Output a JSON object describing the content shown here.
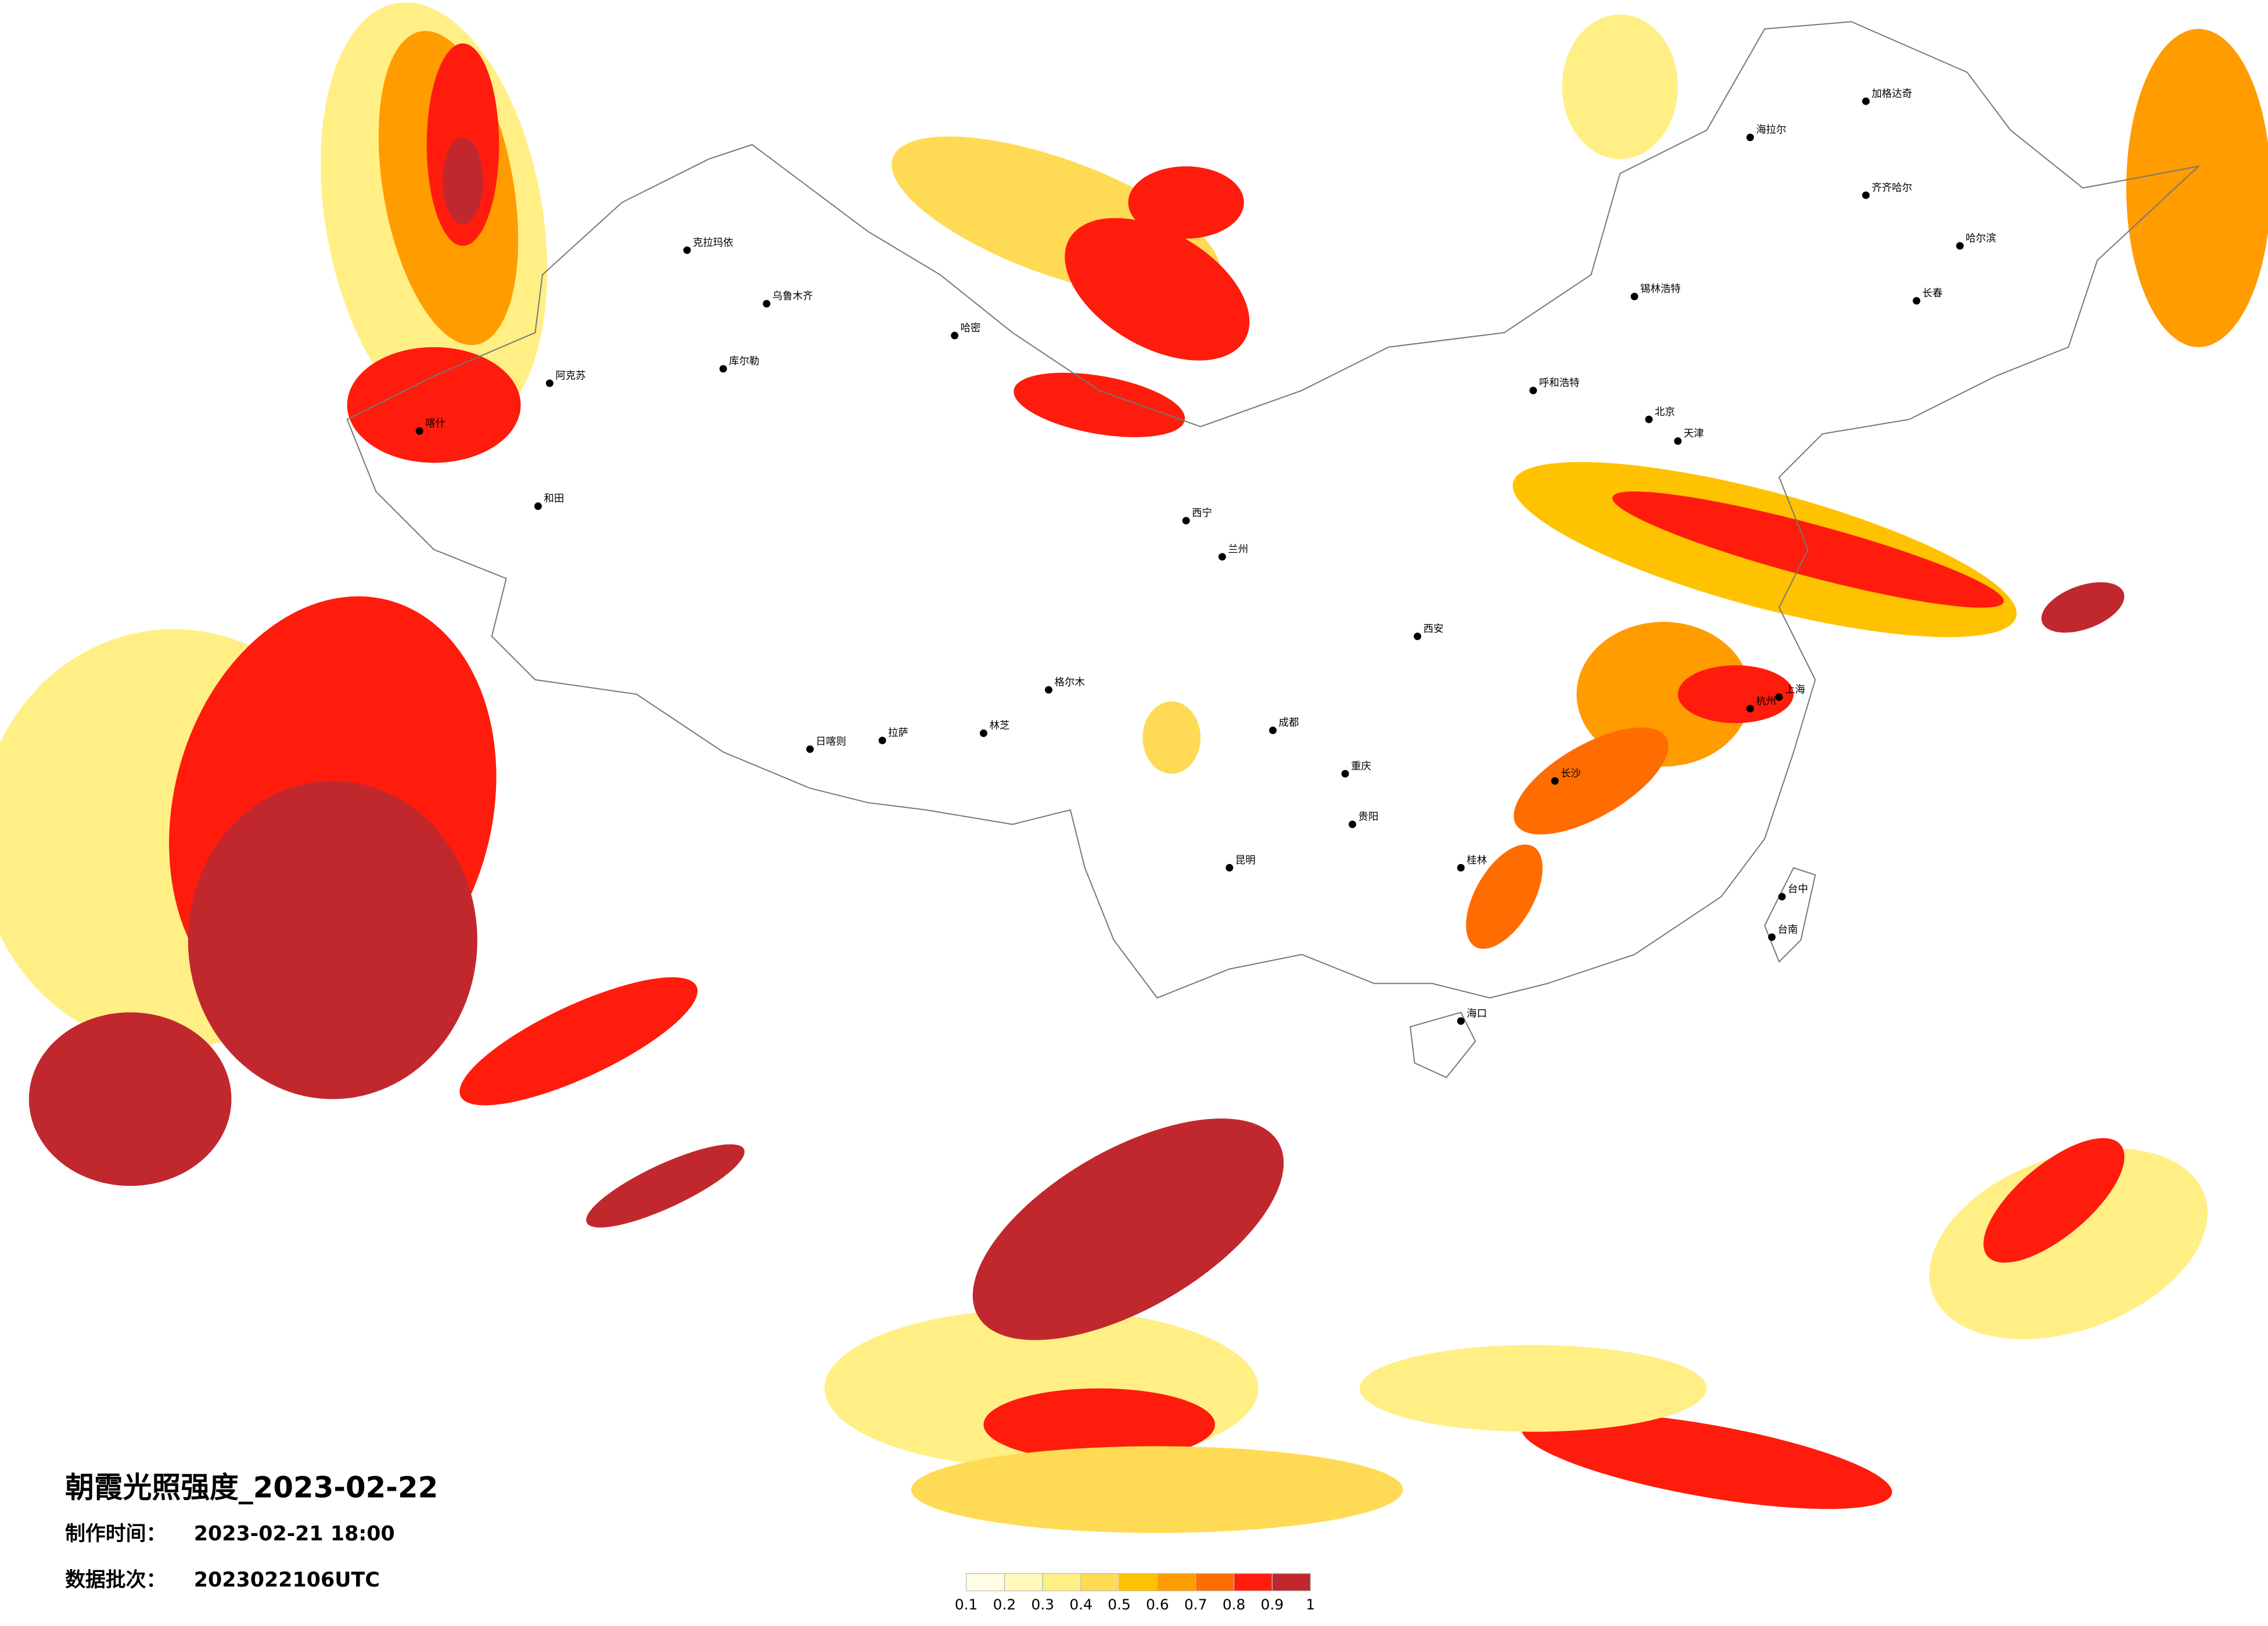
{
  "header": {
    "title": "朝霞光照强度_2023-02-22",
    "made_label": "制作时间：",
    "made_time": "2023-02-21 18:00",
    "batch_label": "数据批次：",
    "batch": "2023022106UTC"
  },
  "legend": {
    "ticks": [
      0.1,
      0.2,
      0.3,
      0.4,
      0.5,
      0.6,
      0.7,
      0.8,
      0.9,
      1
    ],
    "colors": [
      "#fffde3",
      "#fff8b8",
      "#ffef85",
      "#ffdb55",
      "#ffc200",
      "#ff9c00",
      "#ff6c00",
      "#ff1c0c",
      "#c0282e"
    ]
  },
  "cities": [
    {
      "name": "喀什"
    },
    {
      "name": "和田"
    },
    {
      "name": "阿克苏"
    },
    {
      "name": "克拉玛依"
    },
    {
      "name": "乌鲁木齐"
    },
    {
      "name": "哈密"
    },
    {
      "name": "库尔勒"
    },
    {
      "name": "格尔木"
    },
    {
      "name": "日喀则"
    },
    {
      "name": "拉萨"
    },
    {
      "name": "林芝"
    },
    {
      "name": "西宁"
    },
    {
      "name": "兰州"
    },
    {
      "name": "成都"
    },
    {
      "name": "重庆"
    },
    {
      "name": "昆明"
    },
    {
      "name": "贵阳"
    },
    {
      "name": "西安"
    },
    {
      "name": "呼和浩特"
    },
    {
      "name": "北京"
    },
    {
      "name": "天津"
    },
    {
      "name": "锡林浩特"
    },
    {
      "name": "海拉尔"
    },
    {
      "name": "加格达奇"
    },
    {
      "name": "齐齐哈尔"
    },
    {
      "name": "哈尔滨"
    },
    {
      "name": "长春"
    },
    {
      "name": "上海"
    },
    {
      "name": "杭州"
    },
    {
      "name": "长沙"
    },
    {
      "name": "桂林"
    },
    {
      "name": "海口"
    },
    {
      "name": "台中"
    },
    {
      "name": "台南"
    }
  ]
}
